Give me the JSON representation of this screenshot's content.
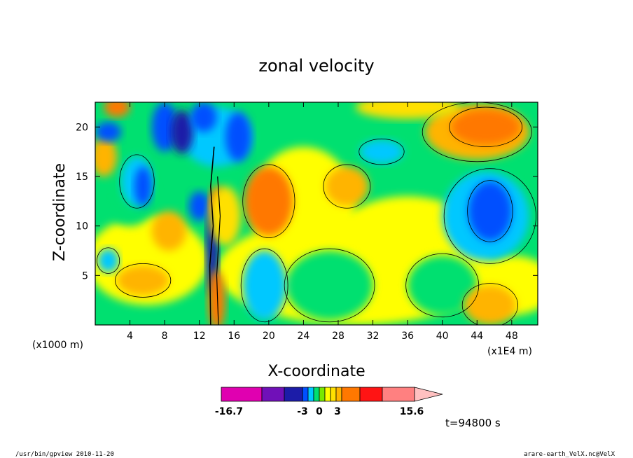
{
  "chart_data": {
    "type": "heatmap",
    "title": "zonal velocity",
    "xlabel": "X-coordinate",
    "ylabel": "Z-coordinate",
    "x_unit": "(x1E4 m)",
    "y_unit": "(x1000 m)",
    "xlim": [
      0,
      51
    ],
    "ylim": [
      0,
      22.5
    ],
    "x_ticks": [
      4,
      8,
      12,
      16,
      20,
      24,
      28,
      32,
      36,
      40,
      44,
      48
    ],
    "y_ticks": [
      5,
      10,
      15,
      20
    ],
    "time_label": "t=94800 s",
    "colorbar": {
      "labels": [
        {
          "text": "-16.7",
          "value": -16.7
        },
        {
          "text": "-3",
          "value": -3
        },
        {
          "text": "0",
          "value": 0
        },
        {
          "text": "3",
          "value": 3
        },
        {
          "text": "15.6",
          "value": 15.6
        }
      ],
      "levels": [
        {
          "color": "#e000b0"
        },
        {
          "color": "#7010b8"
        },
        {
          "color": "#1c1ca8"
        },
        {
          "color": "#0050ff"
        },
        {
          "color": "#00c8ff"
        },
        {
          "color": "#00e070"
        },
        {
          "color": "#78e800"
        },
        {
          "color": "#ffff00"
        },
        {
          "color": "#ffe000"
        },
        {
          "color": "#ffb400"
        },
        {
          "color": "#ff7800"
        },
        {
          "color": "#ff1414"
        },
        {
          "color": "#ff8080"
        }
      ],
      "extend_color": "#ffc0c0"
    },
    "footer_left": "/usr/bin/gpview   2010-11-20",
    "footer_right": "arare-earth_VelX.nc@VelX"
  }
}
